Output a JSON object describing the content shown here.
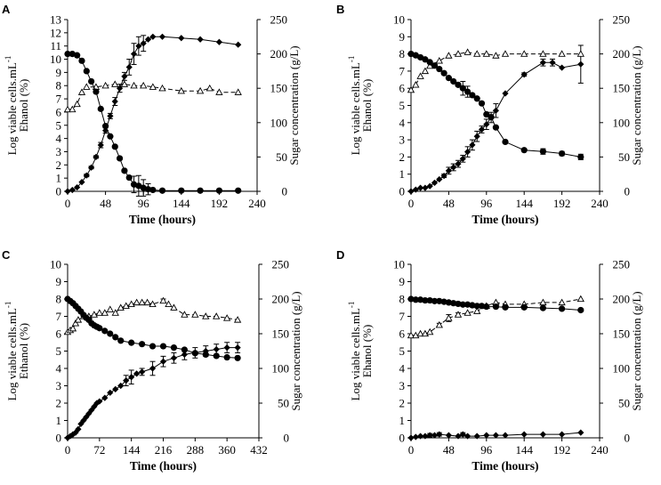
{
  "chart_data": [
    {
      "type": "line",
      "panel": "A",
      "xlabel": "Time  (hours)",
      "ylabel": "Log viable  cells.mL-1\nEhanol  (%)",
      "ylabel_lines": [
        "Log viable  cells.mL",
        "Ehanol  (%)"
      ],
      "ylabel_superscript": "-1",
      "y2label": "Sugar concentration  (g/L)",
      "xlim": [
        0,
        240
      ],
      "xticks": [
        0,
        48,
        96,
        144,
        192,
        240
      ],
      "ylim": [
        0,
        13
      ],
      "yticks": [
        0,
        1,
        2,
        3,
        4,
        5,
        6,
        7,
        8,
        9,
        10,
        11,
        12,
        13
      ],
      "y2lim": [
        0,
        250
      ],
      "y2ticks": [
        0,
        50,
        100,
        150,
        200,
        250
      ],
      "series": [
        {
          "name": "Ethanol",
          "marker": "diamond",
          "line": "solid",
          "axis": "left",
          "x": [
            0,
            6,
            12,
            18,
            24,
            30,
            36,
            42,
            48,
            54,
            60,
            66,
            72,
            78,
            84,
            90,
            96,
            102,
            108,
            120,
            144,
            168,
            192,
            216
          ],
          "y": [
            0,
            0.1,
            0.3,
            0.7,
            1.2,
            1.8,
            2.6,
            3.5,
            4.6,
            5.7,
            6.8,
            7.8,
            8.7,
            9.4,
            10.4,
            11.0,
            11.2,
            11.5,
            11.7,
            11.7,
            11.6,
            11.5,
            11.3,
            11.1
          ],
          "err": [
            0,
            0,
            0,
            0,
            0.1,
            0.1,
            0.1,
            0.2,
            0.2,
            0.2,
            0.3,
            0.3,
            0.3,
            0.6,
            0.8,
            0.7,
            0.6,
            0,
            0,
            0,
            0,
            0,
            0,
            0
          ]
        },
        {
          "name": "Log viable cells",
          "marker": "triangle-open",
          "line": "dashed",
          "axis": "left",
          "x": [
            0,
            6,
            12,
            18,
            24,
            36,
            48,
            60,
            72,
            84,
            96,
            108,
            120,
            144,
            168,
            180,
            192,
            216
          ],
          "y": [
            6.2,
            6.2,
            6.6,
            7.5,
            7.9,
            7.9,
            8.0,
            8.1,
            8.1,
            8.0,
            8.0,
            7.9,
            7.8,
            7.6,
            7.6,
            7.8,
            7.5,
            7.5
          ],
          "err": [
            0,
            0,
            0,
            0,
            0,
            0,
            0,
            0,
            0,
            0,
            0,
            0,
            0,
            0,
            0,
            0,
            0,
            0
          ]
        },
        {
          "name": "Sugar",
          "marker": "circle",
          "line": "solid",
          "axis": "right",
          "x": [
            0,
            6,
            12,
            18,
            24,
            30,
            36,
            42,
            48,
            54,
            60,
            66,
            72,
            78,
            84,
            90,
            96,
            102,
            108,
            120,
            144,
            168,
            192,
            216
          ],
          "y": [
            200,
            200,
            198,
            190,
            175,
            160,
            145,
            120,
            95,
            80,
            65,
            48,
            30,
            20,
            10,
            8,
            5,
            3,
            2,
            1,
            1,
            1,
            1,
            1
          ],
          "err": [
            0,
            0,
            0,
            0,
            0,
            0,
            0,
            0,
            0,
            0,
            0,
            0,
            0,
            0,
            12,
            15,
            12,
            8,
            0,
            0,
            0,
            0,
            0,
            0
          ]
        }
      ]
    },
    {
      "type": "line",
      "panel": "B",
      "xlabel": "Time  (hours)",
      "ylabel": "Log viable  cells.mL-1\nEhanol  (%)",
      "ylabel_lines": [
        "Log viable  cells.mL",
        "Ehanol  (%)"
      ],
      "ylabel_superscript": "-1",
      "y2label": "Sugar concentration  (g/L)",
      "xlim": [
        0,
        240
      ],
      "xticks": [
        0,
        48,
        96,
        144,
        192,
        240
      ],
      "ylim": [
        0,
        10
      ],
      "yticks": [
        0,
        1,
        2,
        3,
        4,
        5,
        6,
        7,
        8,
        9,
        10
      ],
      "y2lim": [
        0,
        250
      ],
      "y2ticks": [
        0,
        50,
        100,
        150,
        200,
        250
      ],
      "series": [
        {
          "name": "Ethanol",
          "marker": "diamond",
          "line": "solid",
          "axis": "left",
          "x": [
            0,
            6,
            12,
            18,
            24,
            30,
            36,
            42,
            48,
            54,
            60,
            66,
            72,
            78,
            84,
            90,
            96,
            102,
            108,
            120,
            144,
            168,
            180,
            192,
            216
          ],
          "y": [
            0,
            0.1,
            0.2,
            0.2,
            0.3,
            0.5,
            0.7,
            0.9,
            1.2,
            1.4,
            1.6,
            1.9,
            2.3,
            2.7,
            3.2,
            3.6,
            3.9,
            4.3,
            4.7,
            5.7,
            6.8,
            7.5,
            7.5,
            7.2,
            7.4
          ],
          "err": [
            0,
            0,
            0,
            0,
            0,
            0,
            0,
            0.1,
            0.2,
            0.2,
            0.2,
            0.2,
            0.3,
            0.3,
            0.3,
            0.2,
            0.3,
            0.3,
            0.4,
            0,
            0.1,
            0.2,
            0.2,
            0,
            1.1
          ]
        },
        {
          "name": "Log viable cells",
          "marker": "triangle-open",
          "line": "dashed",
          "axis": "left",
          "x": [
            0,
            6,
            12,
            18,
            24,
            36,
            48,
            60,
            72,
            84,
            96,
            108,
            120,
            144,
            168,
            192,
            216
          ],
          "y": [
            5.9,
            6.2,
            6.7,
            7.0,
            7.3,
            7.6,
            7.9,
            8.0,
            8.1,
            8.0,
            8.0,
            7.9,
            8.0,
            8.0,
            8.0,
            8.0,
            8.0
          ],
          "err": [
            0,
            0,
            0,
            0,
            0,
            0,
            0,
            0,
            0,
            0,
            0,
            0,
            0,
            0,
            0,
            0,
            0
          ]
        },
        {
          "name": "Sugar",
          "marker": "circle",
          "line": "solid",
          "axis": "right",
          "x": [
            0,
            6,
            12,
            18,
            24,
            30,
            36,
            42,
            48,
            54,
            60,
            66,
            72,
            78,
            84,
            90,
            96,
            102,
            108,
            120,
            144,
            168,
            192,
            216
          ],
          "y": [
            200,
            198,
            195,
            192,
            188,
            183,
            178,
            172,
            165,
            160,
            155,
            150,
            145,
            140,
            135,
            128,
            112,
            108,
            93,
            72,
            60,
            58,
            55,
            50
          ],
          "err": [
            0,
            0,
            0,
            0,
            0,
            0,
            0,
            0,
            0,
            0,
            0,
            10,
            8,
            0,
            0,
            0,
            0,
            0,
            0,
            0,
            0,
            4,
            3,
            4
          ]
        }
      ]
    },
    {
      "type": "line",
      "panel": "C",
      "xlabel": "Time  (hours)",
      "ylabel": "Log viable  cells.mL-1\nEthanol  (%)",
      "ylabel_lines": [
        "Log viable  cells.mL",
        "Ethanol  (%)"
      ],
      "ylabel_superscript": "-1",
      "y2label": "Sugar concentration  (g/L)",
      "xlim": [
        0,
        432
      ],
      "xticks": [
        0,
        72,
        144,
        216,
        288,
        360,
        432
      ],
      "ylim": [
        0,
        10
      ],
      "yticks": [
        0,
        1,
        2,
        3,
        4,
        5,
        6,
        7,
        8,
        9,
        10
      ],
      "y2lim": [
        0,
        250
      ],
      "y2ticks": [
        0,
        50,
        100,
        150,
        200,
        250
      ],
      "series": [
        {
          "name": "Ethanol",
          "marker": "diamond",
          "line": "solid",
          "axis": "left",
          "x": [
            0,
            6,
            12,
            18,
            24,
            30,
            36,
            42,
            48,
            54,
            60,
            66,
            72,
            84,
            96,
            108,
            120,
            132,
            144,
            156,
            168,
            192,
            216,
            240,
            264,
            288,
            312,
            336,
            360,
            384
          ],
          "y": [
            0,
            0.1,
            0.2,
            0.3,
            0.5,
            0.8,
            1.0,
            1.2,
            1.4,
            1.6,
            1.8,
            2.0,
            2.1,
            2.3,
            2.6,
            2.8,
            3.0,
            3.3,
            3.5,
            3.7,
            3.8,
            4.0,
            4.4,
            4.6,
            4.8,
            4.9,
            5.0,
            5.1,
            5.2,
            5.2
          ],
          "err": [
            0,
            0,
            0,
            0,
            0,
            0,
            0,
            0,
            0,
            0,
            0,
            0,
            0,
            0,
            0,
            0,
            0,
            0.3,
            0.4,
            0,
            0.2,
            0.4,
            0.3,
            0.3,
            0.3,
            0.3,
            0.3,
            0.3,
            0.3,
            0.3
          ]
        },
        {
          "name": "Log viable cells",
          "marker": "triangle-open",
          "line": "dashed",
          "axis": "left",
          "x": [
            0,
            6,
            12,
            18,
            24,
            36,
            48,
            60,
            72,
            84,
            96,
            108,
            120,
            132,
            144,
            156,
            168,
            180,
            192,
            216,
            228,
            240,
            264,
            288,
            312,
            336,
            360,
            384
          ],
          "y": [
            6.1,
            6.2,
            6.3,
            6.6,
            6.8,
            7.0,
            7.0,
            7.1,
            7.2,
            7.2,
            7.4,
            7.2,
            7.5,
            7.6,
            7.7,
            7.8,
            7.8,
            7.8,
            7.7,
            7.9,
            7.7,
            7.5,
            7.1,
            7.1,
            7.0,
            7.0,
            6.9,
            6.8
          ],
          "err": [
            0,
            0,
            0,
            0,
            0,
            0,
            0,
            0,
            0,
            0,
            0,
            0,
            0,
            0,
            0,
            0,
            0,
            0,
            0,
            0.1,
            0,
            0,
            0,
            0,
            0,
            0,
            0,
            0
          ]
        },
        {
          "name": "Sugar",
          "marker": "circle",
          "line": "solid",
          "axis": "right",
          "x": [
            0,
            6,
            12,
            18,
            24,
            30,
            36,
            42,
            48,
            54,
            60,
            66,
            72,
            84,
            96,
            108,
            120,
            144,
            168,
            192,
            216,
            240,
            264,
            288,
            312,
            336,
            360,
            384
          ],
          "y": [
            200,
            197,
            194,
            190,
            186,
            182,
            177,
            173,
            170,
            165,
            162,
            160,
            158,
            154,
            150,
            145,
            140,
            137,
            135,
            132,
            132,
            130,
            127,
            122,
            120,
            118,
            116,
            115
          ],
          "err": [
            0,
            0,
            0,
            0,
            0,
            0,
            0,
            0,
            0,
            0,
            0,
            0,
            0,
            0,
            0,
            0,
            0,
            0,
            0,
            0,
            0,
            0,
            0,
            0,
            0,
            0,
            0,
            0
          ]
        }
      ]
    },
    {
      "type": "line",
      "panel": "D",
      "xlabel": "Time  (hours)",
      "ylabel": "Log viable  cells.mL-1\nEhanol  (%)",
      "ylabel_lines": [
        "Log viable  cells.mL",
        "Ehanol  (%)"
      ],
      "ylabel_superscript": "-1",
      "y2label": "Sugar concentration  (g/L)",
      "xlim": [
        0,
        240
      ],
      "xticks": [
        0,
        48,
        96,
        144,
        192,
        240
      ],
      "ylim": [
        0,
        10
      ],
      "yticks": [
        0,
        1,
        2,
        3,
        4,
        5,
        6,
        7,
        8,
        9,
        10
      ],
      "y2lim": [
        0,
        250
      ],
      "y2ticks": [
        0,
        50,
        100,
        150,
        200,
        250
      ],
      "series": [
        {
          "name": "Ethanol",
          "marker": "diamond",
          "line": "solid",
          "axis": "left",
          "x": [
            0,
            6,
            12,
            18,
            24,
            30,
            36,
            48,
            60,
            66,
            72,
            84,
            96,
            108,
            120,
            144,
            168,
            192,
            216
          ],
          "y": [
            0,
            0.05,
            0.1,
            0.1,
            0.15,
            0.15,
            0.2,
            0.15,
            0.1,
            0.2,
            0.1,
            0.1,
            0.15,
            0.15,
            0.15,
            0.2,
            0.2,
            0.2,
            0.3
          ],
          "err": [
            0,
            0,
            0,
            0,
            0.1,
            0,
            0.1,
            0,
            0,
            0.1,
            0,
            0,
            0,
            0,
            0,
            0,
            0,
            0,
            0
          ]
        },
        {
          "name": "Log viable cells",
          "marker": "triangle-open",
          "line": "dashed",
          "axis": "left",
          "x": [
            0,
            6,
            12,
            18,
            24,
            36,
            48,
            60,
            72,
            84,
            96,
            108,
            120,
            144,
            168,
            192,
            216
          ],
          "y": [
            5.9,
            5.9,
            6.0,
            6.0,
            6.1,
            6.5,
            6.9,
            7.1,
            7.2,
            7.3,
            7.6,
            7.8,
            7.7,
            7.7,
            7.8,
            7.8,
            8.0
          ],
          "err": [
            0,
            0,
            0,
            0,
            0,
            0.1,
            0.2,
            0.1,
            0,
            0,
            0,
            0,
            0,
            0,
            0,
            0,
            0
          ]
        },
        {
          "name": "Sugar",
          "marker": "circle",
          "line": "solid",
          "axis": "right",
          "x": [
            0,
            6,
            12,
            18,
            24,
            30,
            36,
            42,
            48,
            54,
            60,
            66,
            72,
            78,
            84,
            90,
            96,
            108,
            120,
            144,
            168,
            192,
            216
          ],
          "y": [
            200,
            199,
            199,
            198,
            198,
            197,
            197,
            196,
            195,
            194,
            193,
            192,
            192,
            191,
            190,
            190,
            189,
            189,
            188,
            188,
            187,
            186,
            184
          ],
          "err": [
            0,
            0,
            0,
            0,
            0,
            0,
            0,
            0,
            0,
            0,
            0,
            0,
            0,
            0,
            0,
            0,
            0,
            0,
            0,
            0,
            0,
            0,
            0
          ]
        }
      ]
    }
  ]
}
